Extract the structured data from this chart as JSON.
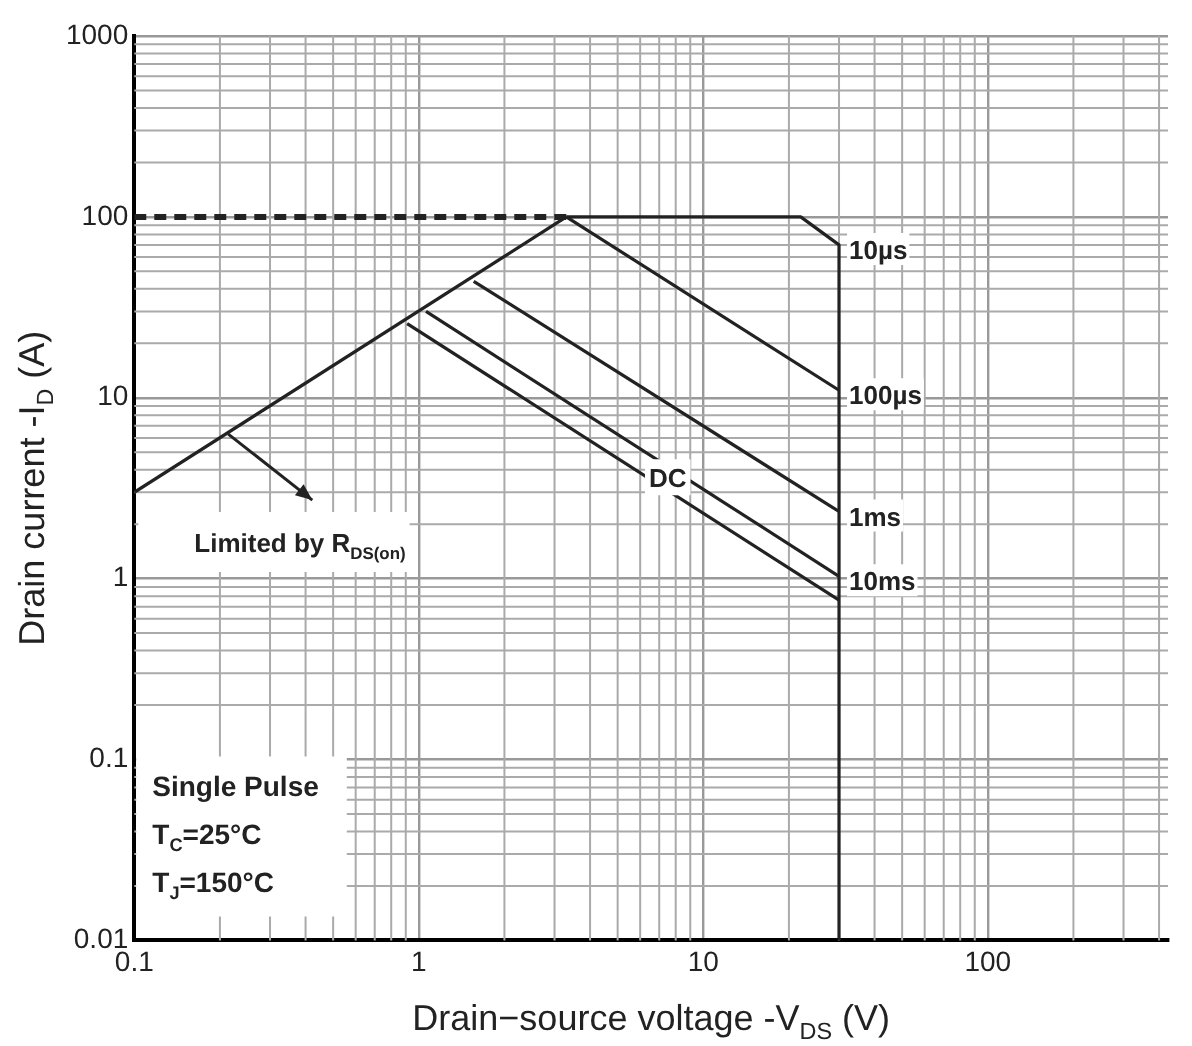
{
  "chart_data": {
    "type": "line",
    "xlabel": "Drain−source voltage -V$_{DS}$ (V)",
    "ylabel": "Drain current -I$_{D}$ (A)",
    "log": "xy",
    "grid": true,
    "legend": false,
    "marker": "none",
    "xlim": [
      0.1,
      430
    ],
    "xticks": [
      0.1,
      1,
      10,
      100
    ],
    "ylim": [
      0.01,
      1000
    ],
    "yticks": [
      0.01,
      0.1,
      1,
      10,
      100,
      1000
    ],
    "series": [
      {
        "color": "#222222",
        "x": [
          0.1,
          3.3
        ],
        "values": [
          3,
          100
        ]
      },
      {
        "color": "#222222",
        "x": [
          0.1,
          3.3
        ],
        "values": [
          100,
          100
        ],
        "line_style": "dashed"
      },
      {
        "name": "10µs",
        "color": "#222222",
        "x": [
          3.3,
          22,
          30,
          30
        ],
        "values": [
          100,
          100,
          70,
          0.01
        ]
      },
      {
        "name": "100µs",
        "color": "#222222",
        "x": [
          3.3,
          30
        ],
        "values": [
          100,
          11
        ]
      },
      {
        "name": "1ms",
        "color": "#222222",
        "x": [
          1.56,
          30
        ],
        "values": [
          44,
          2.35
        ]
      },
      {
        "name": "10ms",
        "color": "#222222",
        "x": [
          1.06,
          30
        ],
        "values": [
          30,
          1.03
        ]
      },
      {
        "color": "#222222",
        "x": [
          0.91,
          30
        ],
        "values": [
          25.7,
          0.76
        ]
      }
    ],
    "annotations": [
      {
        "text": "DC",
        "x": 7.5,
        "y": 3.2
      },
      {
        "text": "Limited by R$_{DS(on)}$",
        "x": 0.214,
        "y": 6.3
      },
      "Single Pulse",
      "T$_{C}$=25°C",
      "T$_{J}$=150°C"
    ]
  }
}
